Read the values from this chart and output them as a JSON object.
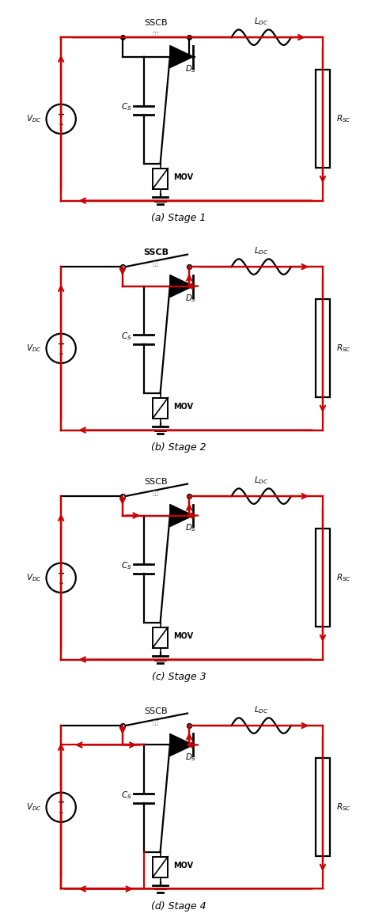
{
  "stages": [
    {
      "label": "(a) Stage 1",
      "sscb_open": false,
      "sscb_bold": false,
      "red_paths": {
        "outer_top_right": true,
        "outer_left_up": true,
        "outer_bottom_left": true,
        "outer_right_down": true,
        "inner_snubber": false,
        "cs_discharge": false
      }
    },
    {
      "label": "(b) Stage 2",
      "sscb_open": true,
      "sscb_bold": true,
      "red_paths": {
        "outer_top_right": true,
        "outer_left_up": true,
        "outer_bottom_left": true,
        "outer_right_down": true,
        "inner_snubber": true,
        "cs_discharge": false
      }
    },
    {
      "label": "(c) Stage 3",
      "sscb_open": true,
      "sscb_bold": false,
      "red_paths": {
        "outer_top_right": true,
        "outer_left_up": true,
        "outer_bottom_left": true,
        "outer_right_down": true,
        "inner_snubber": true,
        "cs_discharge": false
      }
    },
    {
      "label": "(d) Stage 4",
      "sscb_open": true,
      "sscb_bold": false,
      "red_paths": {
        "outer_top_right": true,
        "outer_left_up": true,
        "outer_bottom_left": true,
        "outer_right_down": true,
        "inner_snubber": true,
        "cs_discharge": true
      }
    }
  ],
  "bg_color": "#ffffff",
  "line_color": "#000000",
  "red_color": "#cc0000"
}
